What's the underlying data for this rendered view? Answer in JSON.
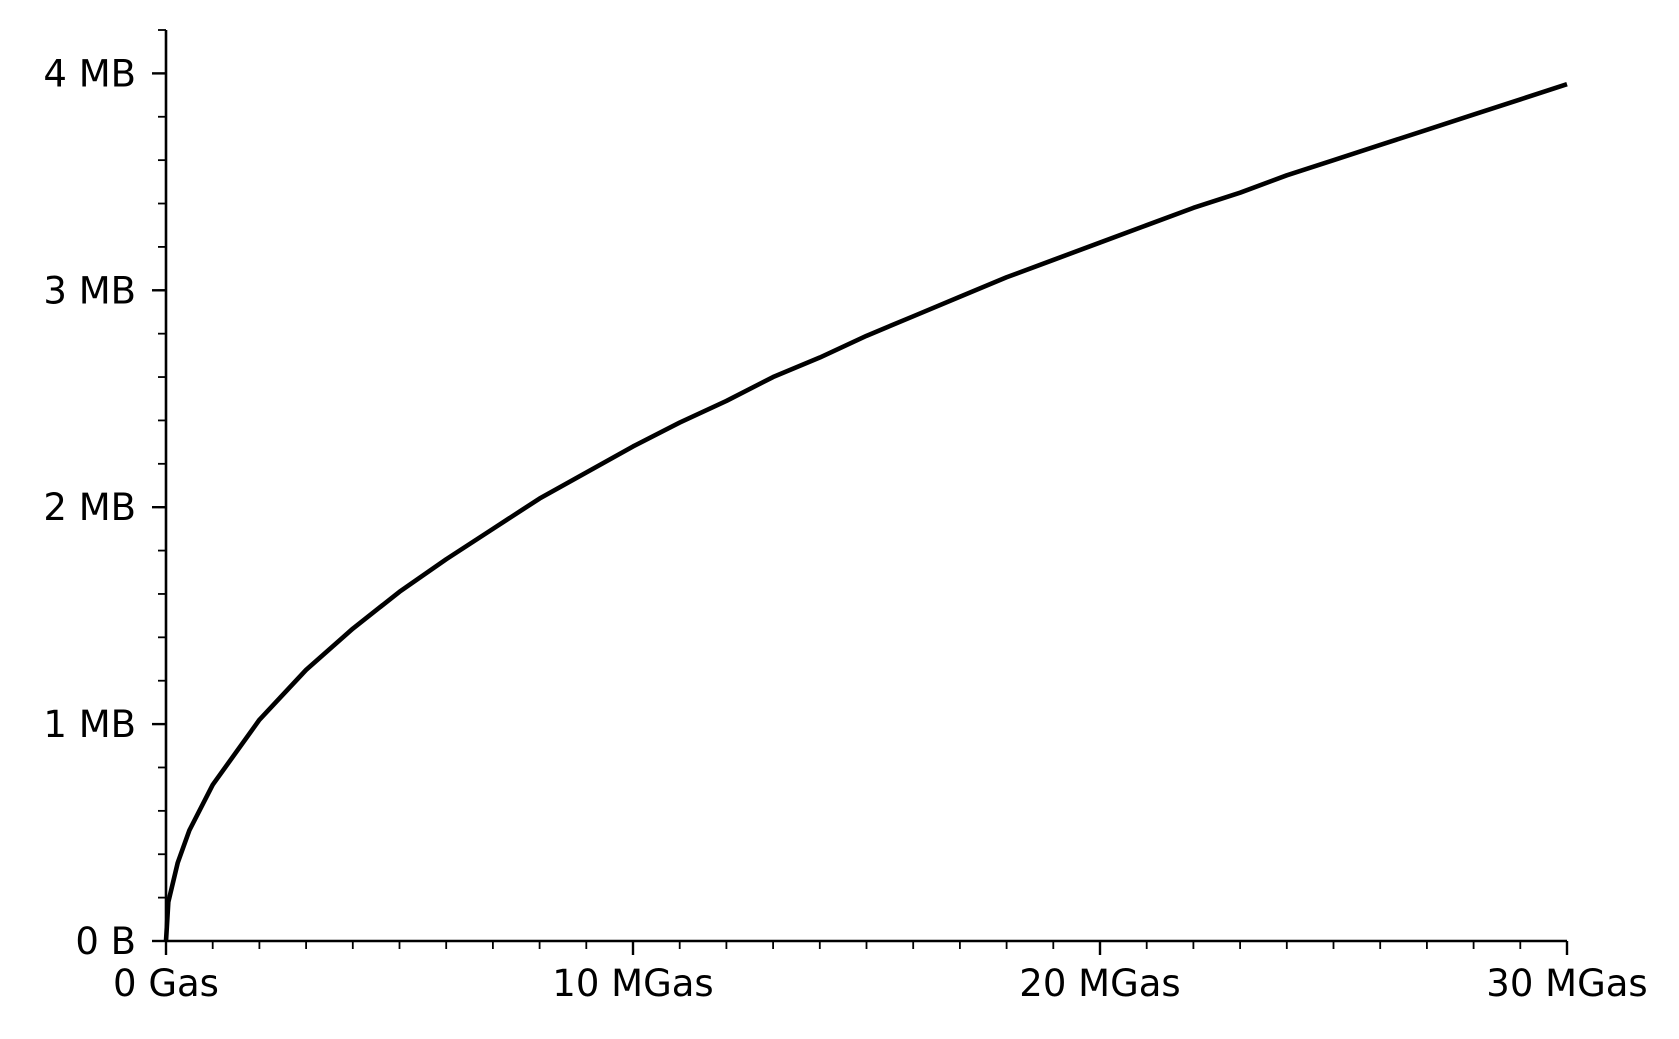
{
  "chart_data": {
    "type": "line",
    "title": "",
    "xlabel": "",
    "ylabel": "",
    "xlim": [
      0,
      30
    ],
    "ylim": [
      0,
      4.2
    ],
    "x_unit": "MGas",
    "y_unit": "MB",
    "grid": false,
    "legend": "none",
    "line_color": "#000000",
    "x_ticks": [
      {
        "value": 0,
        "label": "0 Gas"
      },
      {
        "value": 10,
        "label": "10 MGas"
      },
      {
        "value": 20,
        "label": "20 MGas"
      },
      {
        "value": 30,
        "label": "30 MGas"
      }
    ],
    "y_ticks": [
      {
        "value": 0,
        "label": "0 B"
      },
      {
        "value": 1,
        "label": "1 MB"
      },
      {
        "value": 2,
        "label": "2 MB"
      },
      {
        "value": 3,
        "label": "3 MB"
      },
      {
        "value": 4,
        "label": "4 MB"
      }
    ],
    "x_minor_step": 1,
    "y_minor_step": 0.2,
    "series": [
      {
        "x": [
          0,
          0.05,
          0.25,
          0.5,
          1,
          2,
          3,
          4,
          5,
          6,
          7,
          8,
          9,
          10,
          11,
          12,
          13,
          14,
          15,
          16,
          17,
          18,
          19,
          20,
          21,
          22,
          23,
          24,
          25,
          26,
          27,
          28,
          29,
          30
        ],
        "values": [
          0,
          0.18,
          0.36,
          0.51,
          0.72,
          1.02,
          1.25,
          1.44,
          1.61,
          1.76,
          1.9,
          2.04,
          2.16,
          2.28,
          2.39,
          2.49,
          2.6,
          2.69,
          2.79,
          2.88,
          2.97,
          3.06,
          3.14,
          3.22,
          3.3,
          3.38,
          3.45,
          3.53,
          3.6,
          3.67,
          3.74,
          3.81,
          3.88,
          3.95
        ]
      }
    ]
  }
}
